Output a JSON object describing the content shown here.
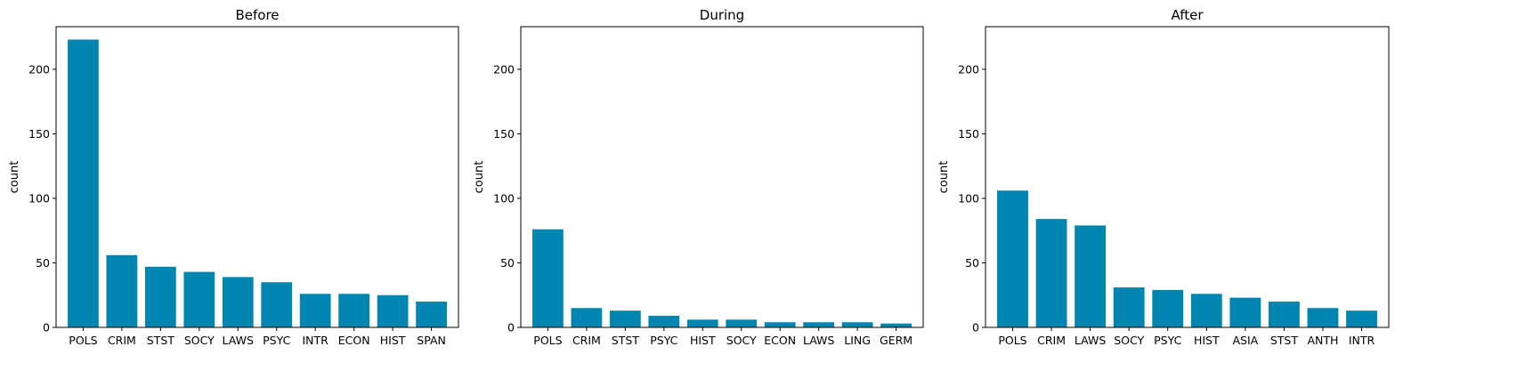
{
  "chart_data": [
    {
      "type": "bar",
      "title": "Before",
      "xlabel": "",
      "ylabel": "count",
      "ylim": [
        0,
        233
      ],
      "yticks": [
        0,
        50,
        100,
        150,
        200
      ],
      "categories": [
        "POLS",
        "CRIM",
        "STST",
        "SOCY",
        "LAWS",
        "PSYC",
        "INTR",
        "ECON",
        "HIST",
        "SPAN"
      ],
      "values": [
        223,
        56,
        47,
        43,
        39,
        35,
        26,
        26,
        25,
        20
      ]
    },
    {
      "type": "bar",
      "title": "During",
      "xlabel": "",
      "ylabel": "count",
      "ylim": [
        0,
        233
      ],
      "yticks": [
        0,
        50,
        100,
        150,
        200
      ],
      "categories": [
        "POLS",
        "CRIM",
        "STST",
        "PSYC",
        "HIST",
        "SOCY",
        "ECON",
        "LAWS",
        "LING",
        "GERM"
      ],
      "values": [
        76,
        15,
        13,
        9,
        6,
        6,
        4,
        4,
        4,
        3
      ]
    },
    {
      "type": "bar",
      "title": "After",
      "xlabel": "",
      "ylabel": "count",
      "ylim": [
        0,
        233
      ],
      "yticks": [
        0,
        50,
        100,
        150,
        200
      ],
      "categories": [
        "POLS",
        "CRIM",
        "LAWS",
        "SOCY",
        "PSYC",
        "HIST",
        "ASIA",
        "STST",
        "ANTH",
        "INTR"
      ],
      "values": [
        106,
        84,
        79,
        31,
        29,
        26,
        23,
        20,
        15,
        13
      ]
    }
  ],
  "colors": {
    "bar": "#0086b0"
  }
}
